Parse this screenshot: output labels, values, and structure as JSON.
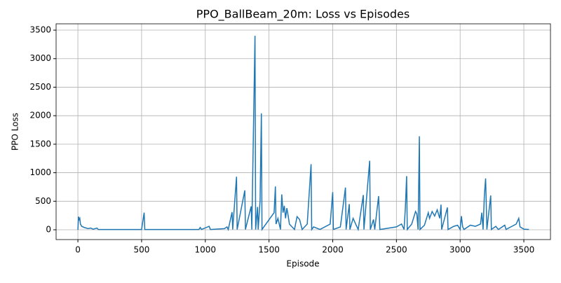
{
  "chart_data": {
    "type": "line",
    "title": "PPO_BallBeam_20m: Loss vs Episodes",
    "x_label": "Episode",
    "y_label": "PPO Loss",
    "grid": true,
    "xlim": [
      -171,
      3709
    ],
    "ylim": [
      -172,
      3611
    ],
    "xticks": [
      0,
      500,
      1000,
      1500,
      2000,
      2500,
      3000,
      3500
    ],
    "yticks": [
      0,
      500,
      1000,
      1500,
      2000,
      2500,
      3000,
      3500
    ],
    "series": [
      {
        "name": "PPO Loss",
        "color": "#1f77b4",
        "x": [
          0,
          5,
          10,
          15,
          20,
          30,
          50,
          80,
          100,
          120,
          150,
          160,
          500,
          520,
          525,
          950,
          960,
          970,
          1030,
          1040,
          1150,
          1170,
          1180,
          1210,
          1215,
          1245,
          1250,
          1310,
          1315,
          1360,
          1365,
          1390,
          1395,
          1410,
          1415,
          1430,
          1440,
          1445,
          1540,
          1550,
          1555,
          1570,
          1590,
          1600,
          1610,
          1620,
          1630,
          1640,
          1650,
          1660,
          1700,
          1720,
          1740,
          1760,
          1800,
          1830,
          1835,
          1850,
          1900,
          1980,
          2000,
          2005,
          2060,
          2100,
          2105,
          2130,
          2135,
          2160,
          2180,
          2200,
          2240,
          2245,
          2290,
          2295,
          2320,
          2330,
          2360,
          2370,
          2500,
          2540,
          2560,
          2570,
          2580,
          2585,
          2620,
          2650,
          2660,
          2670,
          2680,
          2685,
          2720,
          2750,
          2760,
          2780,
          2800,
          2820,
          2840,
          2850,
          2855,
          2900,
          2905,
          2950,
          2980,
          3000,
          3010,
          3020,
          3030,
          3080,
          3120,
          3160,
          3170,
          3180,
          3190,
          3200,
          3210,
          3240,
          3245,
          3280,
          3300,
          3350,
          3360,
          3440,
          3460,
          3470,
          3500,
          3540
        ],
        "values": [
          0,
          230,
          180,
          200,
          100,
          60,
          40,
          20,
          30,
          10,
          30,
          5,
          5,
          300,
          5,
          5,
          40,
          5,
          60,
          5,
          20,
          50,
          5,
          310,
          5,
          930,
          5,
          690,
          5,
          410,
          5,
          3400,
          5,
          400,
          5,
          520,
          2040,
          5,
          300,
          760,
          100,
          200,
          5,
          620,
          300,
          420,
          200,
          380,
          250,
          100,
          5,
          230,
          180,
          5,
          100,
          1150,
          5,
          50,
          5,
          100,
          660,
          5,
          50,
          740,
          5,
          450,
          5,
          200,
          100,
          5,
          610,
          5,
          1210,
          5,
          180,
          5,
          590,
          5,
          50,
          100,
          5,
          380,
          940,
          5,
          100,
          320,
          280,
          5,
          1640,
          5,
          80,
          300,
          200,
          320,
          240,
          350,
          200,
          440,
          5,
          390,
          5,
          60,
          80,
          5,
          240,
          50,
          5,
          80,
          60,
          100,
          300,
          5,
          600,
          900,
          5,
          600,
          5,
          60,
          5,
          80,
          5,
          100,
          200,
          50,
          10,
          5
        ]
      }
    ]
  }
}
